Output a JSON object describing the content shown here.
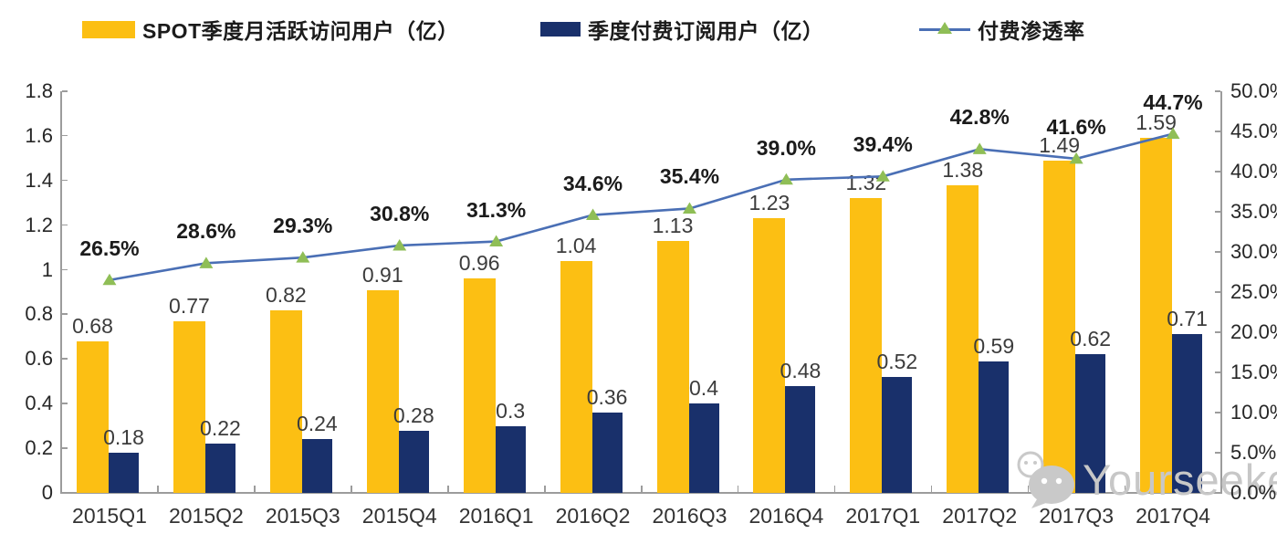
{
  "legend": {
    "items": [
      {
        "label": "SPOT季度月活跃访问用户（亿）",
        "type": "bar",
        "color": "#FCBF13"
      },
      {
        "label": "季度付费订阅用户（亿）",
        "type": "bar",
        "color": "#19306B"
      },
      {
        "label": "付费渗透率",
        "type": "line",
        "color": "#4A6FB5",
        "marker_color": "#8FBE56"
      }
    ]
  },
  "chart_data": {
    "type": "combo",
    "categories": [
      "2015Q1",
      "2015Q2",
      "2015Q3",
      "2015Q4",
      "2016Q1",
      "2016Q2",
      "2016Q3",
      "2016Q4",
      "2017Q1",
      "2017Q2",
      "2017Q3",
      "2017Q4"
    ],
    "series": [
      {
        "name": "SPOT季度月活跃访问用户（亿）",
        "type": "bar",
        "axis": "left",
        "color": "#FCBF13",
        "values": [
          0.68,
          0.77,
          0.82,
          0.91,
          0.96,
          1.04,
          1.13,
          1.23,
          1.32,
          1.38,
          1.49,
          1.59
        ],
        "labels": [
          "0.68",
          "0.77",
          "0.82",
          "0.91",
          "0.96",
          "1.04",
          "1.13",
          "1.23",
          "1.32",
          "1.38",
          "1.49",
          "1.59"
        ]
      },
      {
        "name": "季度付费订阅用户（亿）",
        "type": "bar",
        "axis": "left",
        "color": "#19306B",
        "values": [
          0.18,
          0.22,
          0.24,
          0.28,
          0.3,
          0.36,
          0.4,
          0.48,
          0.52,
          0.59,
          0.62,
          0.71
        ],
        "labels": [
          "0.18",
          "0.22",
          "0.24",
          "0.28",
          "0.3",
          "0.36",
          "0.4",
          "0.48",
          "0.52",
          "0.59",
          "0.62",
          "0.71"
        ]
      },
      {
        "name": "付费渗透率",
        "type": "line",
        "axis": "right",
        "color": "#4A6FB5",
        "marker": "triangle",
        "marker_color": "#8FBE56",
        "values": [
          26.5,
          28.6,
          29.3,
          30.8,
          31.3,
          34.6,
          35.4,
          39.0,
          39.4,
          42.8,
          41.6,
          44.7
        ],
        "labels": [
          "26.5%",
          "28.6%",
          "29.3%",
          "30.8%",
          "31.3%",
          "34.6%",
          "35.4%",
          "39.0%",
          "39.4%",
          "42.8%",
          "41.6%",
          "44.7%"
        ]
      }
    ],
    "left_axis": {
      "min": 0,
      "max": 1.8,
      "tick_labels": [
        "0",
        "0.2",
        "0.4",
        "0.6",
        "0.8",
        "1",
        "1.2",
        "1.4",
        "1.6",
        "1.8"
      ]
    },
    "right_axis": {
      "min": 0,
      "max": 50,
      "tick_labels": [
        "0.0%",
        "5.0%",
        "10.0%",
        "15.0%",
        "20.0%",
        "25.0%",
        "30.0%",
        "35.0%",
        "40.0%",
        "45.0%",
        "50.0%"
      ]
    },
    "grid": false,
    "legend_position": "top"
  },
  "watermark": {
    "text": "Yourseeker",
    "icon": "wechat-icon"
  }
}
